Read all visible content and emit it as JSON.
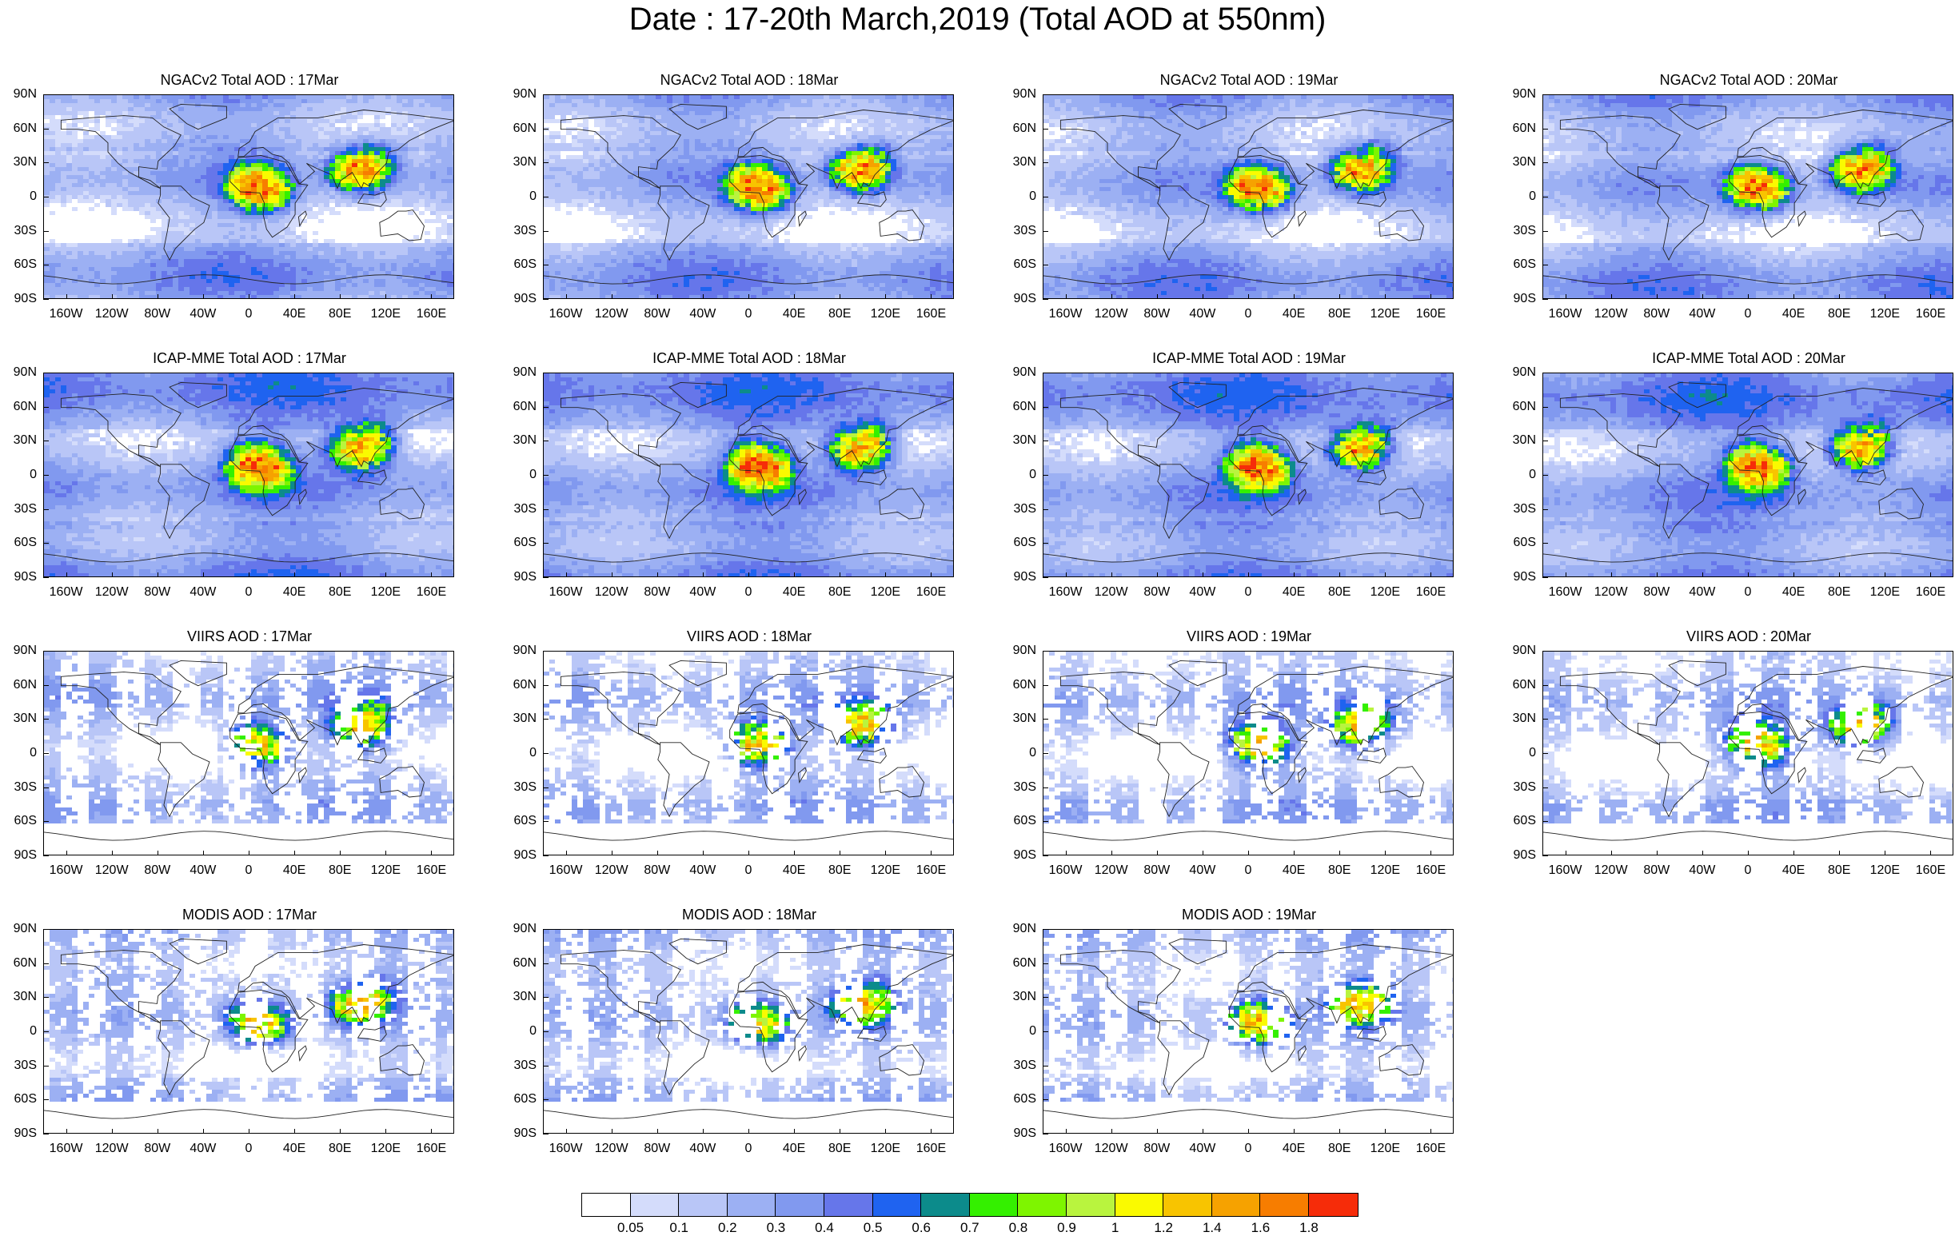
{
  "title": "Date : 17-20th March,2019 (Total AOD at 550nm)",
  "rows": [
    {
      "model": "NGACv2 Total AOD",
      "panels": [
        "NGACv2 Total AOD : 17Mar",
        "NGACv2 Total AOD : 18Mar",
        "NGACv2 Total AOD : 19Mar",
        "NGACv2 Total AOD : 20Mar"
      ]
    },
    {
      "model": "ICAP-MME Total AOD",
      "panels": [
        "ICAP-MME Total AOD : 17Mar",
        "ICAP-MME Total AOD : 18Mar",
        "ICAP-MME Total AOD : 19Mar",
        "ICAP-MME Total AOD : 20Mar"
      ]
    },
    {
      "model": "VIIRS AOD",
      "panels": [
        "VIIRS AOD : 17Mar",
        "VIIRS AOD : 18Mar",
        "VIIRS AOD : 19Mar",
        "VIIRS AOD : 20Mar"
      ]
    },
    {
      "model": "MODIS AOD",
      "panels": [
        "MODIS AOD : 17Mar",
        "MODIS AOD : 18Mar",
        "MODIS AOD : 19Mar"
      ]
    }
  ],
  "lat_ticks": [
    "90N",
    "60N",
    "30N",
    "0",
    "30S",
    "60S",
    "90S"
  ],
  "lon_ticks": [
    "160W",
    "120W",
    "80W",
    "40W",
    "0",
    "40E",
    "80E",
    "120E",
    "160E"
  ],
  "colorbar": {
    "colors": [
      "#ffffff",
      "#d4dcfb",
      "#b9c6f7",
      "#9cb0f3",
      "#8199ef",
      "#6676ea",
      "#1f63f0",
      "#0c8b8b",
      "#34f000",
      "#7ef500",
      "#b9f43e",
      "#fafa00",
      "#f8c400",
      "#f6a200",
      "#f77d00",
      "#f62c09"
    ],
    "labels": [
      "0.05",
      "0.1",
      "0.2",
      "0.3",
      "0.4",
      "0.5",
      "0.6",
      "0.7",
      "0.8",
      "0.9",
      "1",
      "1.2",
      "1.4",
      "1.6",
      "1.8"
    ]
  }
}
